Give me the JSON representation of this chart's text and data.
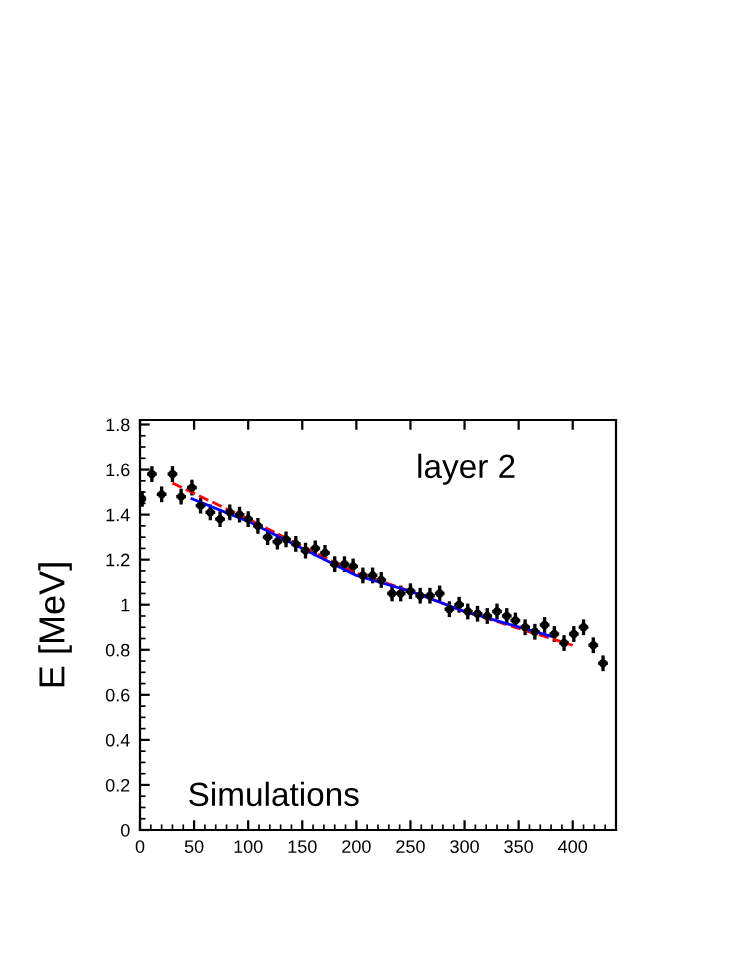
{
  "chart_data": {
    "type": "scatter",
    "ylabel": "E [MeV]",
    "annotations": [
      "layer 2",
      "Simulations"
    ],
    "xlim": [
      0,
      440
    ],
    "xticks": [
      0,
      50,
      100,
      150,
      200,
      250,
      300,
      350,
      400
    ],
    "ylim": [
      0,
      1.82
    ],
    "yticks": [
      0,
      0.2,
      0.4,
      0.6,
      0.8,
      1,
      1.2,
      1.4,
      1.6,
      1.8
    ],
    "grid": false,
    "legend": false,
    "series": [
      {
        "marker": "circle",
        "color": "#000000",
        "x": [
          2,
          11,
          20,
          30,
          38,
          48,
          56,
          65,
          74,
          83,
          92,
          100,
          109,
          118,
          127,
          135,
          144,
          153,
          162,
          171,
          180,
          189,
          197,
          206,
          215,
          223,
          233,
          241,
          250,
          259,
          268,
          277,
          286,
          295,
          303,
          312,
          321,
          330,
          339,
          347,
          356,
          365,
          374,
          383,
          392,
          401,
          410,
          419,
          428
        ],
        "values": [
          1.47,
          1.58,
          1.49,
          1.58,
          1.48,
          1.52,
          1.44,
          1.41,
          1.38,
          1.41,
          1.4,
          1.38,
          1.35,
          1.3,
          1.28,
          1.29,
          1.27,
          1.24,
          1.25,
          1.23,
          1.18,
          1.18,
          1.17,
          1.13,
          1.13,
          1.11,
          1.05,
          1.05,
          1.06,
          1.04,
          1.04,
          1.05,
          0.98,
          1.0,
          0.97,
          0.96,
          0.95,
          0.97,
          0.95,
          0.93,
          0.9,
          0.88,
          0.91,
          0.87,
          0.83,
          0.87,
          0.9,
          0.82,
          0.74
        ],
        "errors": [
          0.035,
          0.035,
          0.035,
          0.035,
          0.035,
          0.035,
          0.035,
          0.035,
          0.035,
          0.035,
          0.035,
          0.035,
          0.035,
          0.035,
          0.035,
          0.035,
          0.035,
          0.035,
          0.035,
          0.035,
          0.035,
          0.035,
          0.035,
          0.035,
          0.035,
          0.035,
          0.035,
          0.035,
          0.035,
          0.035,
          0.035,
          0.035,
          0.035,
          0.035,
          0.035,
          0.035,
          0.035,
          0.035,
          0.035,
          0.035,
          0.035,
          0.035,
          0.035,
          0.035,
          0.035,
          0.035,
          0.035,
          0.035,
          0.035
        ],
        "xerrors": [
          2,
          4.5,
          4.5,
          4.5,
          4.5,
          4.5,
          4.5,
          4.5,
          4.5,
          4.5,
          4.5,
          4.5,
          4.5,
          4.5,
          4.5,
          4.5,
          4.5,
          4.5,
          4.5,
          4.5,
          4.5,
          4.5,
          4.5,
          4.5,
          4.5,
          4.5,
          4.5,
          4.5,
          4.5,
          4.5,
          4.5,
          4.5,
          4.5,
          4.5,
          4.5,
          4.5,
          4.5,
          4.5,
          4.5,
          4.5,
          4.5,
          4.5,
          4.5,
          4.5,
          4.5,
          4.5,
          4.5,
          4.5,
          4.5
        ]
      },
      {
        "type": "line",
        "color": "#ff0000",
        "line_style": "dashed",
        "x": [
          30,
          100,
          200,
          250,
          300,
          400
        ],
        "values": [
          1.54,
          1.38,
          1.14,
          1.06,
          0.97,
          0.82
        ]
      },
      {
        "type": "line",
        "color": "#0000ff",
        "line_style": "solid",
        "x": [
          48,
          100,
          200,
          250,
          300,
          380
        ],
        "values": [
          1.47,
          1.37,
          1.13,
          1.06,
          0.97,
          0.86
        ]
      }
    ]
  }
}
